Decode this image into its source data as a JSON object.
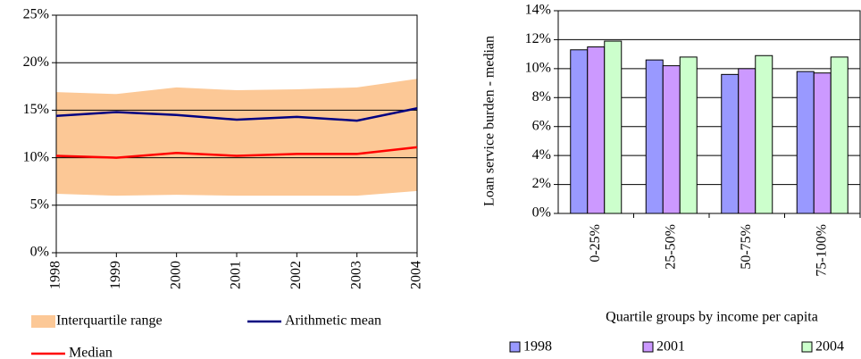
{
  "chart_data": [
    {
      "type": "line",
      "x": [
        1998,
        1999,
        2000,
        2001,
        2002,
        2003,
        2004
      ],
      "xlim": [
        1998,
        2004
      ],
      "xticks": [
        1998,
        1999,
        2000,
        2001,
        2002,
        2003,
        2004
      ],
      "ylim": [
        0,
        25
      ],
      "yticks": [
        {
          "value": 0,
          "label": "0%"
        },
        {
          "value": 5,
          "label": "5%"
        },
        {
          "value": 10,
          "label": "10%"
        },
        {
          "value": 15,
          "label": "15%"
        },
        {
          "value": 20,
          "label": "20%"
        },
        {
          "value": 25,
          "label": "25%"
        }
      ],
      "grid": true,
      "series": [
        {
          "name": "Interquartile range",
          "color": "#fcc896",
          "lower": [
            6.2,
            6.0,
            6.1,
            6.0,
            6.0,
            6.0,
            6.5
          ],
          "upper": [
            16.9,
            16.7,
            17.4,
            17.1,
            17.2,
            17.4,
            18.3
          ]
        },
        {
          "name": "Arithmetic mean",
          "color": "#000080",
          "values": [
            14.4,
            14.8,
            14.5,
            14.0,
            14.3,
            13.9,
            15.2
          ]
        },
        {
          "name": "Median",
          "color": "#ff0000",
          "values": [
            10.2,
            10.0,
            10.5,
            10.2,
            10.4,
            10.4,
            11.1
          ]
        }
      ]
    },
    {
      "type": "bar",
      "categories": [
        "0-25%",
        "25-50%",
        "50-75%",
        "75-100%"
      ],
      "ylabel": "Loan service burden - median",
      "xlabel": "Quartile groups by income per capita",
      "ylim": [
        0,
        14
      ],
      "yticks": [
        {
          "value": 0,
          "label": "0%"
        },
        {
          "value": 2,
          "label": "2%"
        },
        {
          "value": 4,
          "label": "4%"
        },
        {
          "value": 6,
          "label": "6%"
        },
        {
          "value": 8,
          "label": "8%"
        },
        {
          "value": 10,
          "label": "10%"
        },
        {
          "value": 12,
          "label": "12%"
        },
        {
          "value": 14,
          "label": "14%"
        }
      ],
      "grid": true,
      "series": [
        {
          "name": "1998",
          "color": "#9999ff",
          "values": [
            11.3,
            10.6,
            9.6,
            9.8
          ]
        },
        {
          "name": "2001",
          "color": "#cc99ff",
          "values": [
            11.5,
            10.2,
            10.0,
            9.7
          ]
        },
        {
          "name": "2004",
          "color": "#ccffcc",
          "values": [
            11.9,
            10.8,
            10.9,
            10.8
          ]
        }
      ]
    }
  ]
}
